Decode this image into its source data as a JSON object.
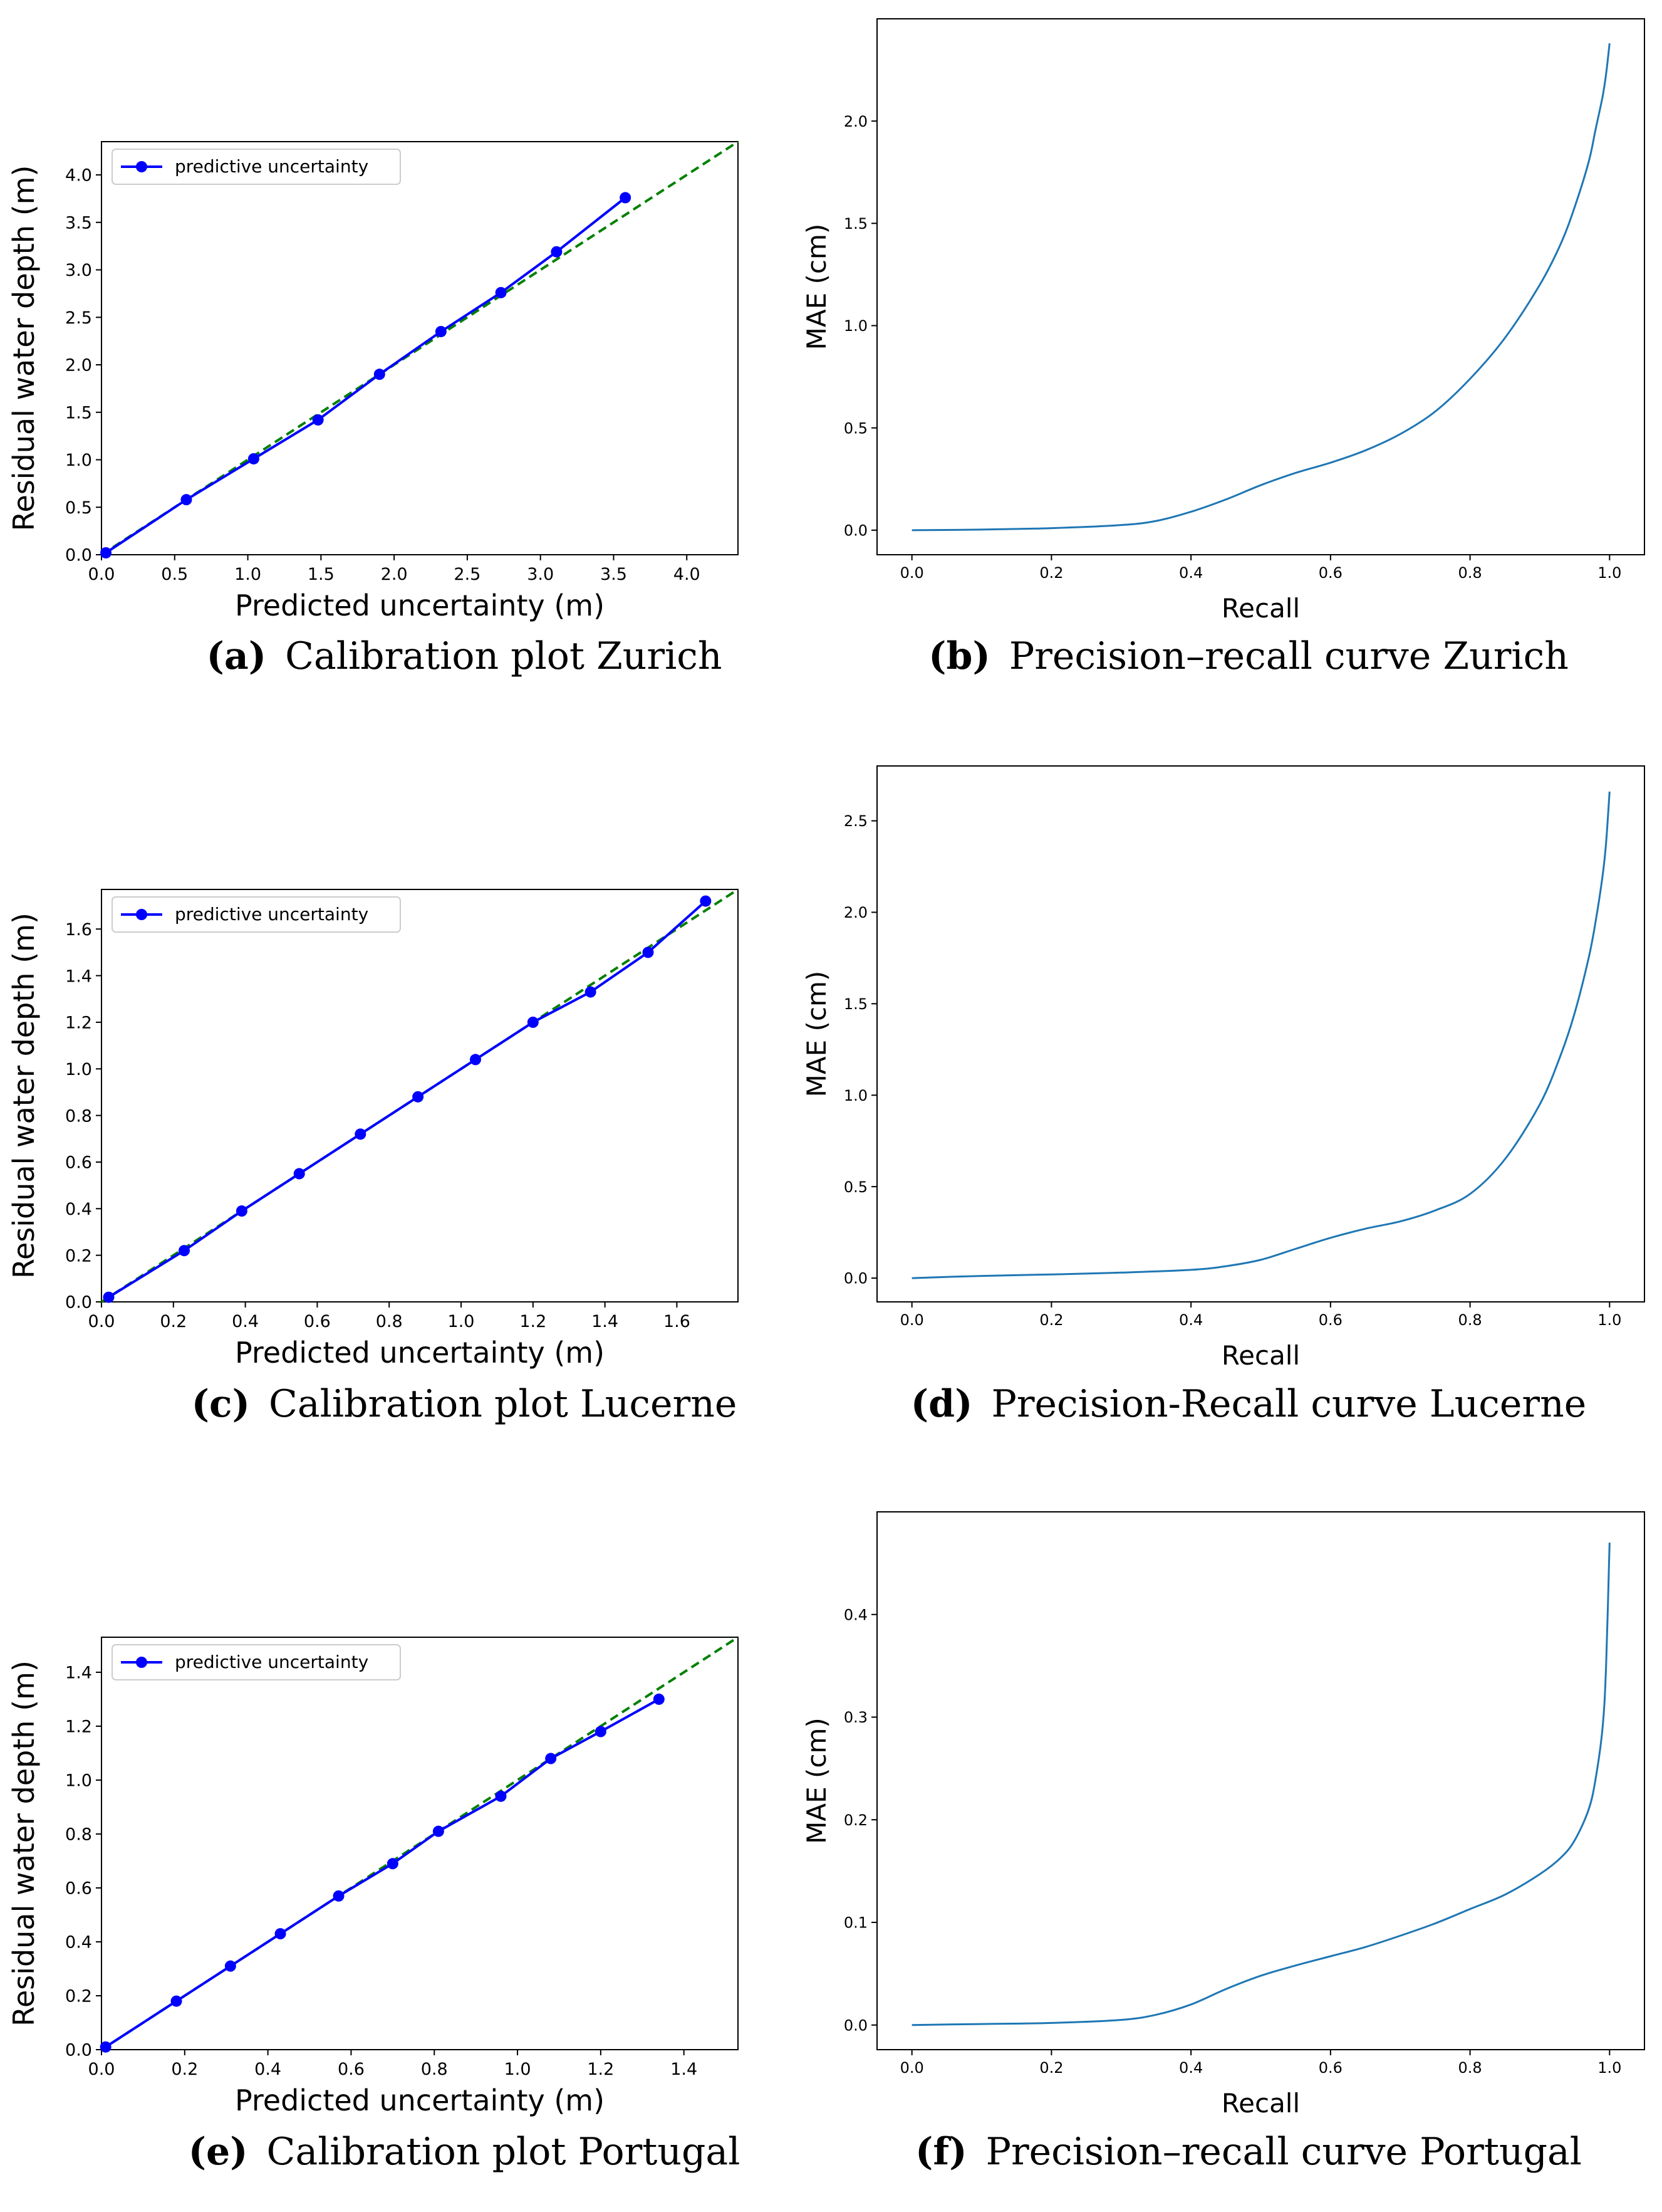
{
  "colors": {
    "calib_line": "#0000ff",
    "diagonal": "#008000",
    "pr_line": "#1f77b4",
    "axis": "#000000",
    "background": "#ffffff"
  },
  "chart_data": [
    {
      "id": "a",
      "type": "line",
      "label": "(a)",
      "caption": "Calibration plot Zurich",
      "xlabel": "Predicted uncertainty (m)",
      "ylabel": "Residual water depth (m)",
      "xlim": [
        0,
        4.35
      ],
      "ylim": [
        0,
        4.35
      ],
      "xticks": [
        "0.0",
        "0.5",
        "1.0",
        "1.5",
        "2.0",
        "2.5",
        "3.0",
        "3.5",
        "4.0"
      ],
      "yticks": [
        "0.0",
        "0.5",
        "1.0",
        "1.5",
        "2.0",
        "2.5",
        "3.0",
        "3.5",
        "4.0"
      ],
      "legend": "predictive uncertainty",
      "legend_position": "top-left",
      "series": [
        {
          "name": "predictive uncertainty",
          "x": [
            0.03,
            0.58,
            1.04,
            1.48,
            1.9,
            2.32,
            2.73,
            3.11,
            3.58
          ],
          "y": [
            0.02,
            0.58,
            1.01,
            1.42,
            1.9,
            2.35,
            2.76,
            3.19,
            3.76
          ]
        }
      ],
      "reference": "y = x (dashed)"
    },
    {
      "id": "b",
      "type": "line",
      "label": "(b)",
      "caption": "Precision–recall curve Zurich",
      "xlabel": "Recall",
      "ylabel": "MAE (cm)",
      "xlim": [
        -0.05,
        1.05
      ],
      "ylim": [
        -0.12,
        2.5
      ],
      "xticks": [
        "0.0",
        "0.2",
        "0.4",
        "0.6",
        "0.8",
        "1.0"
      ],
      "yticks": [
        "0.0",
        "0.5",
        "1.0",
        "1.5",
        "2.0"
      ],
      "series": [
        {
          "name": "MAE",
          "x": [
            0.0,
            0.1,
            0.2,
            0.3,
            0.35,
            0.4,
            0.45,
            0.5,
            0.55,
            0.6,
            0.65,
            0.7,
            0.75,
            0.8,
            0.85,
            0.9,
            0.93,
            0.95,
            0.97,
            0.98,
            0.99,
            0.995,
            1.0
          ],
          "y": [
            0.0,
            0.003,
            0.01,
            0.025,
            0.045,
            0.09,
            0.15,
            0.22,
            0.28,
            0.33,
            0.39,
            0.47,
            0.58,
            0.74,
            0.94,
            1.2,
            1.4,
            1.58,
            1.8,
            1.96,
            2.12,
            2.23,
            2.38
          ]
        }
      ]
    },
    {
      "id": "c",
      "type": "line",
      "label": "(c)",
      "caption": "Calibration plot Lucerne",
      "xlabel": "Predicted uncertainty (m)",
      "ylabel": "Residual water depth (m)",
      "xlim": [
        0,
        1.77
      ],
      "ylim": [
        0,
        1.77
      ],
      "xticks": [
        "0.0",
        "0.2",
        "0.4",
        "0.6",
        "0.8",
        "1.0",
        "1.2",
        "1.4",
        "1.6"
      ],
      "yticks": [
        "0.0",
        "0.2",
        "0.4",
        "0.6",
        "0.8",
        "1.0",
        "1.2",
        "1.4",
        "1.6"
      ],
      "legend": "predictive uncertainty",
      "legend_position": "top-left",
      "series": [
        {
          "name": "predictive uncertainty",
          "x": [
            0.02,
            0.23,
            0.39,
            0.55,
            0.72,
            0.88,
            1.04,
            1.2,
            1.36,
            1.52,
            1.68
          ],
          "y": [
            0.02,
            0.22,
            0.39,
            0.55,
            0.72,
            0.88,
            1.04,
            1.2,
            1.33,
            1.5,
            1.72
          ]
        }
      ],
      "reference": "y = x (dashed)"
    },
    {
      "id": "d",
      "type": "line",
      "label": "(d)",
      "caption": "Precision-Recall curve Lucerne",
      "xlabel": "Recall",
      "ylabel": "MAE (cm)",
      "xlim": [
        -0.05,
        1.05
      ],
      "ylim": [
        -0.13,
        2.8
      ],
      "xticks": [
        "0.0",
        "0.2",
        "0.4",
        "0.6",
        "0.8",
        "1.0"
      ],
      "yticks": [
        "0.0",
        "0.5",
        "1.0",
        "1.5",
        "2.0",
        "2.5"
      ],
      "series": [
        {
          "name": "MAE",
          "x": [
            0.0,
            0.1,
            0.2,
            0.3,
            0.4,
            0.45,
            0.5,
            0.55,
            0.6,
            0.65,
            0.7,
            0.75,
            0.8,
            0.85,
            0.9,
            0.93,
            0.95,
            0.97,
            0.98,
            0.99,
            0.995,
            1.0
          ],
          "y": [
            0.0,
            0.012,
            0.02,
            0.03,
            0.045,
            0.065,
            0.1,
            0.16,
            0.22,
            0.27,
            0.31,
            0.37,
            0.46,
            0.65,
            0.95,
            1.22,
            1.45,
            1.75,
            1.95,
            2.2,
            2.38,
            2.66
          ]
        }
      ]
    },
    {
      "id": "e",
      "type": "line",
      "label": "(e)",
      "caption": "Calibration plot Portugal",
      "xlabel": "Predicted uncertainty (m)",
      "ylabel": "Residual water depth (m)",
      "xlim": [
        0,
        1.53
      ],
      "ylim": [
        0,
        1.53
      ],
      "xticks": [
        "0.0",
        "0.2",
        "0.4",
        "0.6",
        "0.8",
        "1.0",
        "1.2",
        "1.4"
      ],
      "yticks": [
        "0.0",
        "0.2",
        "0.4",
        "0.6",
        "0.8",
        "1.0",
        "1.2",
        "1.4"
      ],
      "legend": "predictive uncertainty",
      "legend_position": "top-left",
      "series": [
        {
          "name": "predictive uncertainty",
          "x": [
            0.01,
            0.18,
            0.31,
            0.43,
            0.57,
            0.7,
            0.81,
            0.96,
            1.08,
            1.2,
            1.34
          ],
          "y": [
            0.01,
            0.18,
            0.31,
            0.43,
            0.57,
            0.69,
            0.81,
            0.94,
            1.08,
            1.18,
            1.3
          ]
        }
      ],
      "reference": "y = x (dashed)"
    },
    {
      "id": "f",
      "type": "line",
      "label": "(f)",
      "caption": "Precision–recall curve Portugal",
      "xlabel": "Recall",
      "ylabel": "MAE (cm)",
      "xlim": [
        -0.05,
        1.05
      ],
      "ylim": [
        -0.024,
        0.5
      ],
      "xticks": [
        "0.0",
        "0.2",
        "0.4",
        "0.6",
        "0.8",
        "1.0"
      ],
      "yticks": [
        "0.0",
        "0.1",
        "0.2",
        "0.3",
        "0.4"
      ],
      "series": [
        {
          "name": "MAE",
          "x": [
            0.0,
            0.1,
            0.2,
            0.3,
            0.35,
            0.4,
            0.45,
            0.5,
            0.55,
            0.6,
            0.65,
            0.7,
            0.75,
            0.8,
            0.85,
            0.9,
            0.93,
            0.95,
            0.97,
            0.98,
            0.99,
            0.995,
            1.0
          ],
          "y": [
            0.0,
            0.001,
            0.002,
            0.005,
            0.01,
            0.02,
            0.035,
            0.048,
            0.058,
            0.067,
            0.076,
            0.087,
            0.099,
            0.113,
            0.127,
            0.147,
            0.163,
            0.18,
            0.21,
            0.24,
            0.29,
            0.35,
            0.47
          ]
        }
      ]
    }
  ]
}
